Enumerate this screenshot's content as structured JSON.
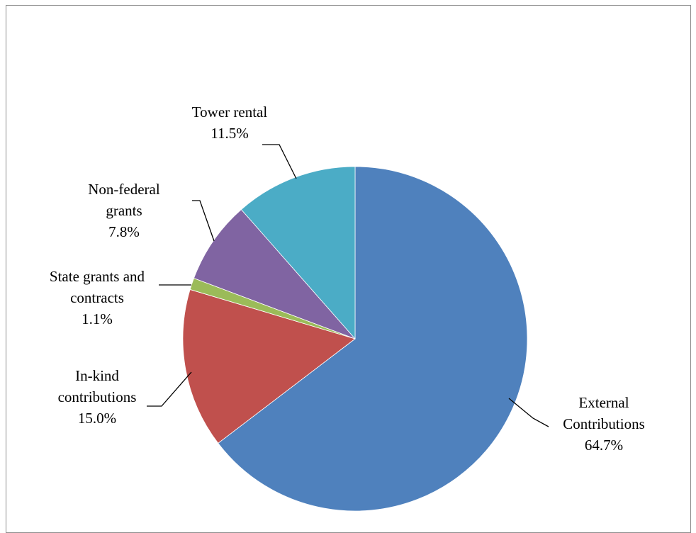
{
  "chart_data": {
    "type": "pie",
    "title": "",
    "slices": [
      {
        "label": [
          "External",
          "Contributions"
        ],
        "value": 64.7,
        "value_label": "64.7%",
        "color": "#4F81BD"
      },
      {
        "label": [
          "In-kind",
          "contributions"
        ],
        "value": 15.0,
        "value_label": "15.0%",
        "color": "#C0504D"
      },
      {
        "label": [
          "State grants and",
          "contracts"
        ],
        "value": 1.1,
        "value_label": "1.1%",
        "color": "#9BBB59"
      },
      {
        "label": [
          "Non-federal",
          "grants"
        ],
        "value": 7.8,
        "value_label": "7.8%",
        "color": "#8064A2"
      },
      {
        "label": [
          "Tower rental"
        ],
        "value": 11.5,
        "value_label": "11.5%",
        "color": "#4BACC6"
      }
    ],
    "start": "12 o'clock",
    "direction": "clockwise",
    "legend": "none",
    "data_labels": "outside with leader lines"
  }
}
